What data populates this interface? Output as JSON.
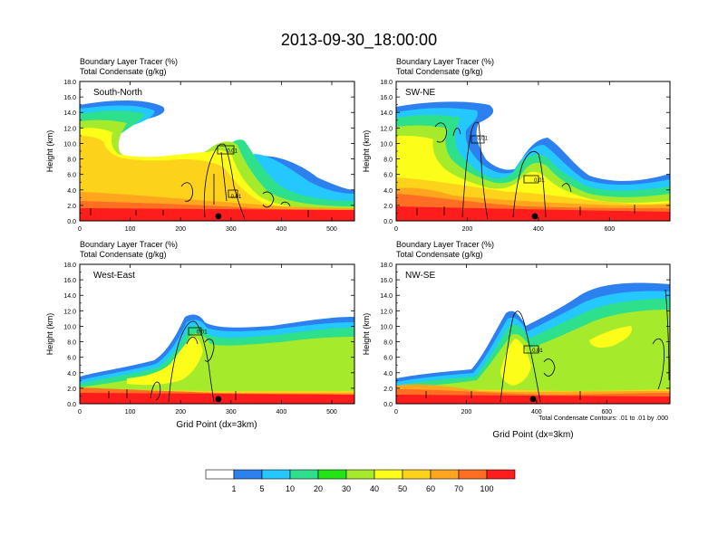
{
  "title": "2013-09-30_18:00:00",
  "colors": {
    "levels": [
      "#ffffff",
      "#2c80f0",
      "#24c8ff",
      "#2ee08c",
      "#22e614",
      "#a6ea2c",
      "#fdfd1a",
      "#fdd21a",
      "#ffa51e",
      "#ff6e22",
      "#ff1c1c"
    ]
  },
  "colorbar": {
    "labels": [
      "1",
      "5",
      "10",
      "20",
      "30",
      "40",
      "50",
      "60",
      "70",
      "100"
    ]
  },
  "footnote": "Total Condensate Contours: .01 to .01 by .000",
  "chart_data": [
    {
      "type": "heatmap",
      "panel": "South-North",
      "title_lines": [
        "Boundary Layer Tracer    (%)",
        "Total Condensate    (g/kg)"
      ],
      "ylabel": "Height (km)",
      "xlabel": "",
      "ylim": [
        0,
        18
      ],
      "xlim": [
        0,
        545
      ],
      "yticks": [
        "0.0",
        "2.0",
        "4.0",
        "6.0",
        "8.0",
        "10.0",
        "12.0",
        "14.0",
        "16.0",
        "18.0"
      ],
      "xticks": [
        0,
        100,
        200,
        300,
        400,
        500
      ],
      "contour_labels": [
        {
          "x": 290,
          "y": 9.2,
          "t": "0.01"
        },
        {
          "x": 298,
          "y": 3.3,
          "t": "0.01"
        }
      ],
      "marker_x": 275
    },
    {
      "type": "heatmap",
      "panel": "SW-NE",
      "title_lines": [
        "Boundary Layer Tracer    (%)",
        "Total Condensate    (g/kg)"
      ],
      "ylabel": "Height (km)",
      "xlabel": "",
      "ylim": [
        0,
        18
      ],
      "xlim": [
        0,
        770
      ],
      "yticks": [
        "0.0",
        "2.0",
        "4.0",
        "6.0",
        "8.0",
        "10.0",
        "12.0",
        "14.0",
        "16.0",
        "18.0"
      ],
      "xticks": [
        0,
        200,
        400,
        600
      ],
      "contour_labels": [
        {
          "x": 225,
          "y": 10.8,
          "t": "0.01"
        },
        {
          "x": 385,
          "y": 5.4,
          "t": "0.01"
        }
      ],
      "marker_x": 390
    },
    {
      "type": "heatmap",
      "panel": "West-East",
      "title_lines": [
        "Boundary Layer Tracer    (%)",
        "Total Condensate    (g/kg)"
      ],
      "ylabel": "Height (km)",
      "xlabel": "Grid Point (dx=3km)",
      "ylim": [
        0,
        18
      ],
      "xlim": [
        0,
        545
      ],
      "yticks": [
        "0.0",
        "2.0",
        "4.0",
        "6.0",
        "8.0",
        "10.0",
        "12.0",
        "14.0",
        "16.0",
        "18.0"
      ],
      "xticks": [
        0,
        100,
        200,
        300,
        400,
        500
      ],
      "contour_labels": [
        {
          "x": 230,
          "y": 9.4,
          "t": "0.01"
        }
      ],
      "marker_x": 275
    },
    {
      "type": "heatmap",
      "panel": "NW-SE",
      "title_lines": [
        "Boundary Layer Tracer    (%)",
        "Total Condensate    (g/kg)"
      ],
      "ylabel": "Height (km)",
      "xlabel": "Grid Point (dx=3km)",
      "ylim": [
        0,
        18
      ],
      "xlim": [
        0,
        780
      ],
      "yticks": [
        "0.0",
        "2.0",
        "4.0",
        "6.0",
        "8.0",
        "10.0",
        "12.0",
        "14.0",
        "16.0",
        "18.0"
      ],
      "xticks": [
        0,
        200,
        400,
        600
      ],
      "contour_labels": [
        {
          "x": 385,
          "y": 7.0,
          "t": "0.01"
        }
      ],
      "marker_x": 390
    }
  ]
}
